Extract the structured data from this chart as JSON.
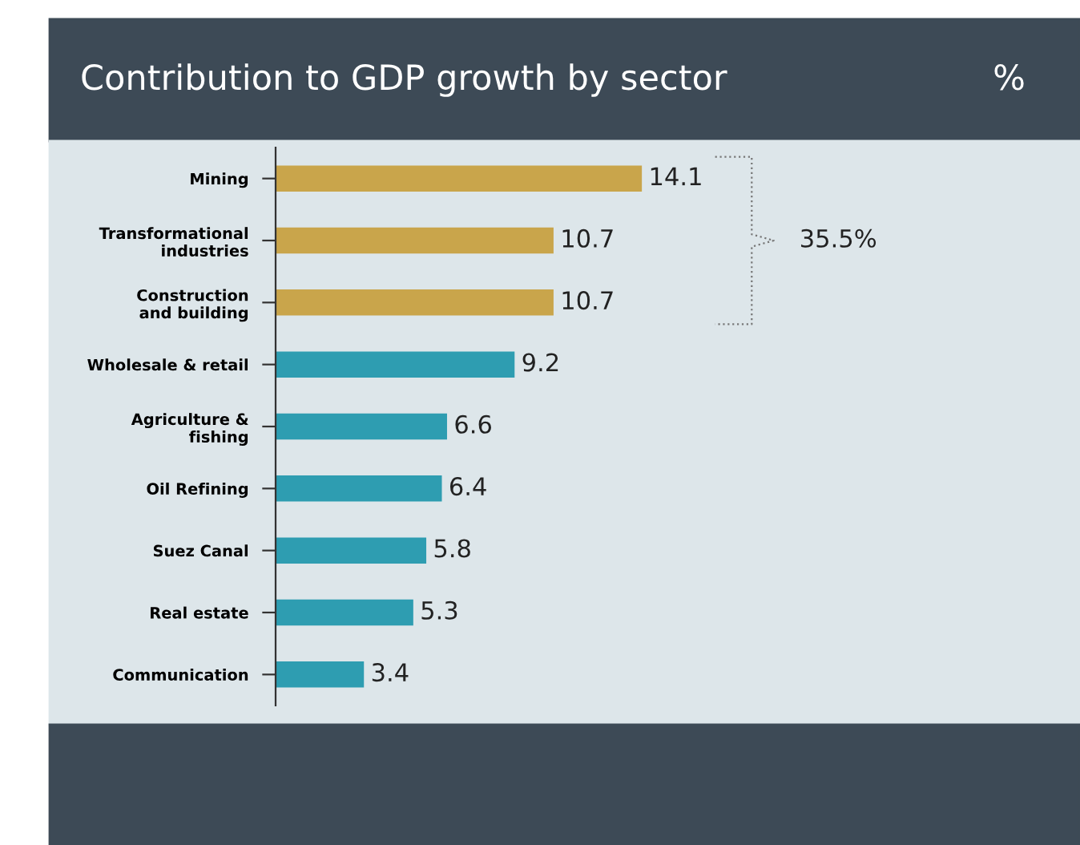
{
  "chart_data": {
    "type": "bar",
    "orientation": "horizontal",
    "title": "Contribution to GDP growth by sector",
    "subtitle": "%",
    "categories": [
      "Mining",
      "Transformational\nindustries",
      "Construction\nand building",
      "Wholesale & retail",
      "Agriculture &\nfishing",
      "Oil Refining",
      "Suez Canal",
      "Real estate",
      "Communication"
    ],
    "values": [
      14.1,
      10.7,
      10.7,
      9.2,
      6.6,
      6.4,
      5.8,
      5.3,
      3.4
    ],
    "colors": [
      "#c9a54b",
      "#c9a54b",
      "#c9a54b",
      "#2e9db1",
      "#2e9db1",
      "#2e9db1",
      "#2e9db1",
      "#2e9db1",
      "#2e9db1"
    ],
    "data_labels": true,
    "grid": false,
    "annotations": [
      "35.5%"
    ]
  }
}
